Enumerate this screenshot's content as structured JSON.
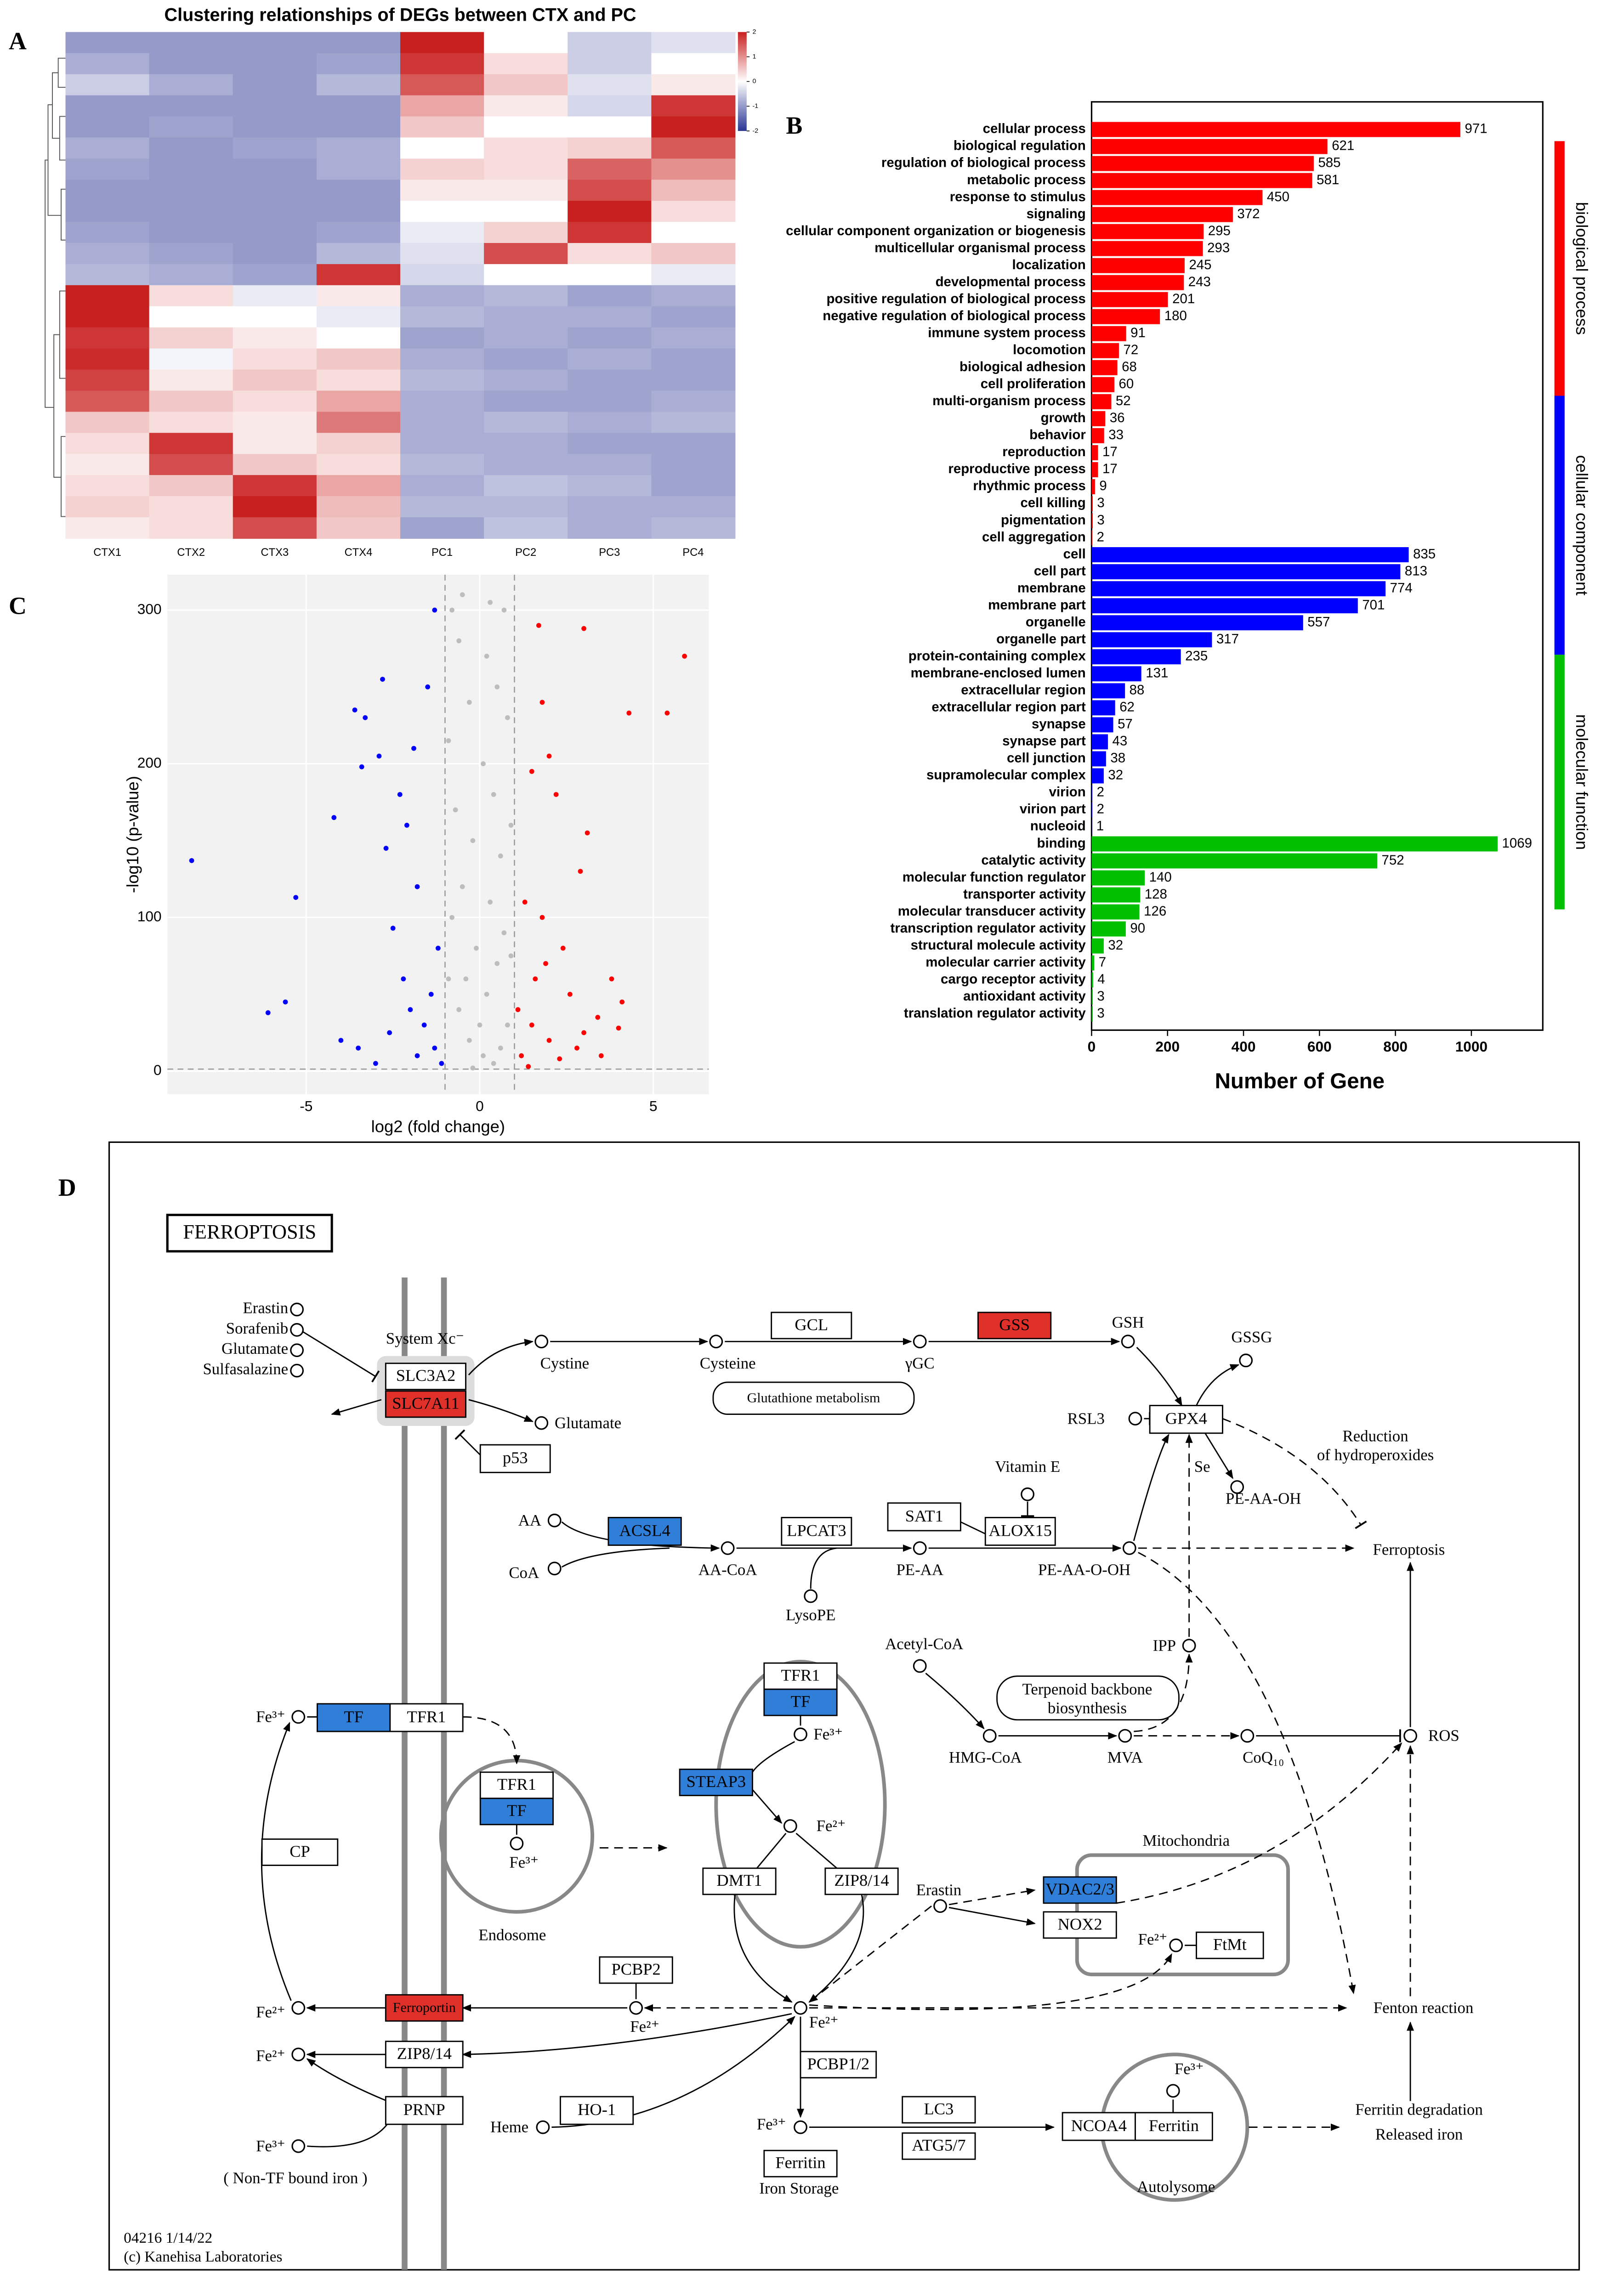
{
  "panels": [
    "A",
    "B",
    "C",
    "D"
  ],
  "chart_data": [
    {
      "type": "heatmap",
      "title": "Clustering relationships of DEGs between CTX and PC",
      "categories": [
        "CTX1",
        "CTX2",
        "CTX3",
        "CTX4",
        "PC1",
        "PC2",
        "PC3",
        "PC4"
      ],
      "values": [
        [
          -1,
          -1,
          -1,
          -1,
          2,
          0,
          -0.5,
          -0.3
        ],
        [
          -0.8,
          -1,
          -1,
          -0.9,
          1.8,
          0.3,
          -0.5,
          0
        ],
        [
          -0.5,
          -0.8,
          -1,
          -0.7,
          1.5,
          0.5,
          -0.3,
          0.2
        ],
        [
          -1,
          -1,
          -1,
          -1,
          0.8,
          0.2,
          -0.4,
          1.8
        ],
        [
          -1,
          -0.9,
          -1,
          -1,
          0.5,
          0,
          0,
          2
        ],
        [
          -0.8,
          -1,
          -0.9,
          -0.8,
          0,
          0.3,
          0.4,
          1.5
        ],
        [
          -0.9,
          -1,
          -1,
          -0.8,
          0.4,
          0.3,
          1.4,
          1
        ],
        [
          -1,
          -1,
          -1,
          -1,
          0.2,
          0.2,
          1.6,
          0.6
        ],
        [
          -1,
          -1,
          -1,
          -1,
          0,
          0,
          2,
          0.3
        ],
        [
          -0.9,
          -1,
          -1,
          -0.9,
          -0.2,
          0.4,
          1.8,
          0
        ],
        [
          -0.8,
          -0.9,
          -1,
          -0.7,
          -0.3,
          1.6,
          0.3,
          0.5
        ],
        [
          -0.7,
          -0.8,
          -0.9,
          1.8,
          -0.4,
          0,
          0,
          -0.2
        ],
        [
          2,
          0.3,
          -0.2,
          0.2,
          -0.8,
          -0.7,
          -0.9,
          -0.8
        ],
        [
          2,
          0,
          0,
          -0.2,
          -0.7,
          -0.8,
          -0.8,
          -0.9
        ],
        [
          1.8,
          0.4,
          0.2,
          0,
          -0.9,
          -0.8,
          -0.9,
          -0.8
        ],
        [
          1.9,
          -0.1,
          0.3,
          0.5,
          -0.8,
          -0.9,
          -0.8,
          -0.9
        ],
        [
          1.7,
          0.2,
          0.5,
          0.3,
          -0.7,
          -0.8,
          -0.9,
          -0.9
        ],
        [
          1.5,
          0.5,
          0.3,
          0.8,
          -0.8,
          -0.9,
          -0.9,
          -0.8
        ],
        [
          0.5,
          0.3,
          0.2,
          1.2,
          -0.8,
          -0.7,
          -0.8,
          -0.7
        ],
        [
          0.3,
          1.8,
          0.2,
          0.4,
          -0.8,
          -0.8,
          -0.9,
          -0.9
        ],
        [
          0.2,
          1.6,
          0.5,
          0.3,
          -0.7,
          -0.8,
          -0.8,
          -0.9
        ],
        [
          0.3,
          0.5,
          1.8,
          0.8,
          -0.8,
          -0.6,
          -0.7,
          -0.9
        ],
        [
          0.4,
          0.3,
          2,
          0.6,
          -0.7,
          -0.7,
          -0.8,
          -0.8
        ],
        [
          0.2,
          0.3,
          1.6,
          0.5,
          -0.9,
          -0.6,
          -0.8,
          -0.7
        ]
      ],
      "zlim": [
        -2,
        2
      ],
      "zticks": [
        2,
        1,
        0,
        -1,
        -2
      ],
      "colors": [
        "#2a3593",
        "#ffffff",
        "#c8201f"
      ]
    },
    {
      "type": "barh",
      "xlabel": "Number of Gene",
      "xlim": [
        0,
        1188
      ],
      "xticks": [
        0,
        200,
        400,
        600,
        800,
        1000
      ],
      "series": [
        {
          "name": "biological process",
          "color": "#ff0000",
          "categories": [
            "cellular process",
            "biological regulation",
            "regulation of biological process",
            "metabolic process",
            "response to stimulus",
            "signaling",
            "cellular component organization or biogenesis",
            "multicellular organismal process",
            "localization",
            "developmental process",
            "positive regulation of biological process",
            "negative regulation of biological process",
            "immune system process",
            "locomotion",
            "biological adhesion",
            "cell proliferation",
            "multi-organism process",
            "growth",
            "behavior",
            "reproduction",
            "reproductive process",
            "rhythmic process",
            "cell killing",
            "pigmentation",
            "cell aggregation"
          ],
          "values": [
            971,
            621,
            585,
            581,
            450,
            372,
            295,
            293,
            245,
            243,
            201,
            180,
            91,
            72,
            68,
            60,
            52,
            36,
            33,
            17,
            17,
            9,
            3,
            3,
            2
          ]
        },
        {
          "name": "cellular component",
          "color": "#0000ff",
          "categories": [
            "cell",
            "cell part",
            "membrane",
            "membrane part",
            "organelle",
            "organelle part",
            "protein-containing complex",
            "membrane-enclosed lumen",
            "extracellular region",
            "extracellular region part",
            "synapse",
            "synapse part",
            "cell junction",
            "supramolecular complex",
            "virion",
            "virion part",
            "nucleoid"
          ],
          "values": [
            835,
            813,
            774,
            701,
            557,
            317,
            235,
            131,
            88,
            62,
            57,
            43,
            38,
            32,
            2,
            2,
            1
          ]
        },
        {
          "name": "molecular function",
          "color": "#00c000",
          "categories": [
            "binding",
            "catalytic activity",
            "molecular function regulator",
            "transporter activity",
            "molecular transducer activity",
            "transcription regulator activity",
            "structural molecule activity",
            "molecular carrier activity",
            "cargo receptor activity",
            "antioxidant activity",
            "translation regulator activity"
          ],
          "values": [
            1069,
            752,
            140,
            128,
            126,
            90,
            32,
            7,
            4,
            3,
            3
          ]
        }
      ]
    },
    {
      "type": "scatter",
      "xlabel": "log2 (fold change)",
      "ylabel": "-log10 (p-value)",
      "xlim": [
        -9,
        6.6
      ],
      "ylim": [
        -15,
        323
      ],
      "xticks": [
        -5,
        0,
        5
      ],
      "yticks": [
        0,
        100,
        200,
        300
      ],
      "grid": true,
      "vlines": [
        -1,
        1
      ],
      "hline": 1.3,
      "series": [
        {
          "color": "#0000ff",
          "x": [
            -8.3,
            -5.3,
            -5.6,
            -6.1,
            -4.2,
            -3.6,
            -3.3,
            -3.4,
            -2.9,
            -2.8,
            -2.7,
            -2.3,
            -2.1,
            -2.5,
            -1.9,
            -1.5,
            -1.8,
            -1.3,
            -4.0,
            -3.5,
            -2.2,
            -2.0,
            -1.6,
            -1.3,
            -1.2,
            -2.6,
            -1.8,
            -1.4,
            -3.0,
            -1.1
          ],
          "values": [
            137,
            113,
            45,
            38,
            165,
            235,
            230,
            198,
            205,
            255,
            145,
            180,
            160,
            93,
            210,
            250,
            120,
            300,
            20,
            15,
            60,
            40,
            30,
            15,
            80,
            25,
            10,
            50,
            5,
            5
          ]
        },
        {
          "color": "#bdbdbd",
          "x": [
            -0.8,
            -0.5,
            0.3,
            0.7,
            -0.6,
            0.2,
            0.5,
            -0.3,
            0.8,
            -0.9,
            0.1,
            0.4,
            -0.7,
            0.9,
            -0.2,
            0.6,
            -0.5,
            0.3,
            -0.8,
            0.7,
            -0.1,
            0.5,
            -0.4,
            0.2,
            -0.6,
            0.8,
            -0.3,
            0.1,
            0.4,
            -0.2,
            0,
            0.6,
            -0.9,
            0.9
          ],
          "values": [
            300,
            310,
            305,
            300,
            280,
            270,
            250,
            240,
            230,
            215,
            200,
            180,
            170,
            160,
            150,
            140,
            120,
            110,
            100,
            90,
            80,
            70,
            60,
            50,
            40,
            30,
            20,
            10,
            5,
            2,
            30,
            15,
            60,
            75
          ]
        },
        {
          "color": "#ff0000",
          "x": [
            5.9,
            4.3,
            5.4,
            3.0,
            1.7,
            1.8,
            2.0,
            1.5,
            2.2,
            3.1,
            2.9,
            1.8,
            2.4,
            1.3,
            3.8,
            4.1,
            3.4,
            2.6,
            1.5,
            2.0,
            2.8,
            1.2,
            3.5,
            1.6,
            1.1,
            4.0,
            2.3,
            1.4,
            3.0,
            1.9
          ],
          "values": [
            270,
            233,
            233,
            288,
            290,
            240,
            205,
            195,
            180,
            155,
            130,
            100,
            80,
            110,
            60,
            45,
            35,
            50,
            30,
            20,
            15,
            10,
            10,
            60,
            40,
            28,
            8,
            3,
            25,
            70
          ]
        }
      ]
    }
  ],
  "pathway": {
    "nodes": [
      {
        "label": "FERROPTOSIS"
      },
      {
        "label": "Erastin"
      },
      {
        "label": "Sorafenib"
      },
      {
        "label": "Glutamate"
      },
      {
        "label": "Sulfasalazine"
      },
      {
        "label": "System Xc⁻"
      },
      {
        "label": "SLC3A2"
      },
      {
        "label": "SLC7A11",
        "color": "#e0302a"
      },
      {
        "label": "Cystine"
      },
      {
        "label": "Cysteine"
      },
      {
        "label": "GCL"
      },
      {
        "label": "γGC"
      },
      {
        "label": "GSS",
        "color": "#e0302a"
      },
      {
        "label": "GSH"
      },
      {
        "label": "GSSG"
      },
      {
        "label": "Glutathione metabolism"
      },
      {
        "label": "Glutamate"
      },
      {
        "label": "p53"
      },
      {
        "label": "RSL3"
      },
      {
        "label": "GPX4"
      },
      {
        "label": "Se"
      },
      {
        "label": "PE-AA-OH"
      },
      {
        "label": "Reduction"
      },
      {
        "label": "of hydroperoxides"
      },
      {
        "label": "SAT1"
      },
      {
        "label": "Vitamin E"
      },
      {
        "label": "ALOX15"
      },
      {
        "label": "AA"
      },
      {
        "label": "CoA"
      },
      {
        "label": "ACSL4",
        "color": "#2f7fd8"
      },
      {
        "label": "AA-CoA"
      },
      {
        "label": "LPCAT3"
      },
      {
        "label": "PE-AA"
      },
      {
        "label": "LysoPE"
      },
      {
        "label": "PE-AA-O-OH"
      },
      {
        "label": "Ferroptosis"
      },
      {
        "label": "IPP"
      },
      {
        "label": "Acetyl-CoA"
      },
      {
        "label": "Terpenoid backbone"
      },
      {
        "label": "biosynthesis"
      },
      {
        "label": "HMG-CoA"
      },
      {
        "label": "MVA"
      },
      {
        "label": "CoQ₁₀"
      },
      {
        "label": "ROS"
      },
      {
        "label": "Fe³⁺"
      },
      {
        "label": "TF",
        "color": "#2f7fd8"
      },
      {
        "label": "TFR1"
      },
      {
        "label": "TFR1"
      },
      {
        "label": "TF",
        "color": "#2f7fd8"
      },
      {
        "label": "Fe³⁺"
      },
      {
        "label": "Endosome"
      },
      {
        "label": "CP"
      },
      {
        "label": "TFR1"
      },
      {
        "label": "TF",
        "color": "#2f7fd8"
      },
      {
        "label": "Fe³⁺"
      },
      {
        "label": "STEAP3",
        "color": "#2f7fd8"
      },
      {
        "label": "Fe²⁺"
      },
      {
        "label": "DMT1"
      },
      {
        "label": "ZIP8/14"
      },
      {
        "label": "Erastin"
      },
      {
        "label": "Mitochondria"
      },
      {
        "label": "VDAC2/3",
        "color": "#2f7fd8"
      },
      {
        "label": "NOX2"
      },
      {
        "label": "Fe²⁺"
      },
      {
        "label": "FtMt"
      },
      {
        "label": "PCBP2"
      },
      {
        "label": "Fe²⁺"
      },
      {
        "label": "Fe²⁺"
      },
      {
        "label": "Ferroportin",
        "color": "#e0302a"
      },
      {
        "label": "Fe²⁺"
      },
      {
        "label": "Fenton reaction"
      },
      {
        "label": "Fe²⁺"
      },
      {
        "label": "ZIP8/14"
      },
      {
        "label": "PRNP"
      },
      {
        "label": "Fe³⁺"
      },
      {
        "label": "( Non-TF bound iron )"
      },
      {
        "label": "HO-1"
      },
      {
        "label": "Heme"
      },
      {
        "label": "PCBP1/2"
      },
      {
        "label": "Fe³⁺"
      },
      {
        "label": "Ferritin"
      },
      {
        "label": "Iron Storage"
      },
      {
        "label": "LC3"
      },
      {
        "label": "ATG5/7"
      },
      {
        "label": "Fe³⁺"
      },
      {
        "label": "NCOA4"
      },
      {
        "label": "Ferritin"
      },
      {
        "label": "Autolysome"
      },
      {
        "label": "Ferritin degradation"
      },
      {
        "label": "Released iron"
      }
    ],
    "footer": [
      "04216 1/14/22",
      "(c) Kanehisa Laboratories"
    ]
  }
}
